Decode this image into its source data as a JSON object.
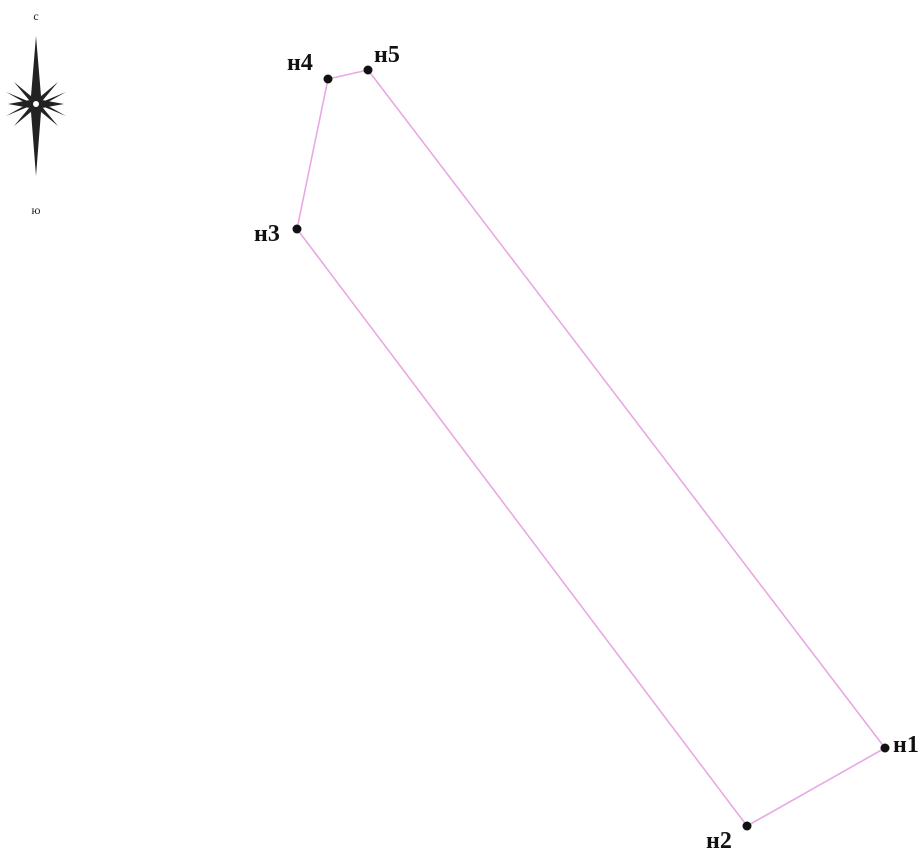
{
  "colors": {
    "boundary": "#e8a8e4",
    "point": "#111111",
    "label": "#111111",
    "compass": "#222222",
    "background": "#ffffff"
  },
  "compass": {
    "icon": "compass-rose-icon",
    "north_label": "с",
    "south_label": "ю"
  },
  "parcel": {
    "points": [
      {
        "id": "n1",
        "label": "н1"
      },
      {
        "id": "n2",
        "label": "н2"
      },
      {
        "id": "n3",
        "label": "н3"
      },
      {
        "id": "n4",
        "label": "н4"
      },
      {
        "id": "n5",
        "label": "н5"
      }
    ],
    "closed": true
  }
}
